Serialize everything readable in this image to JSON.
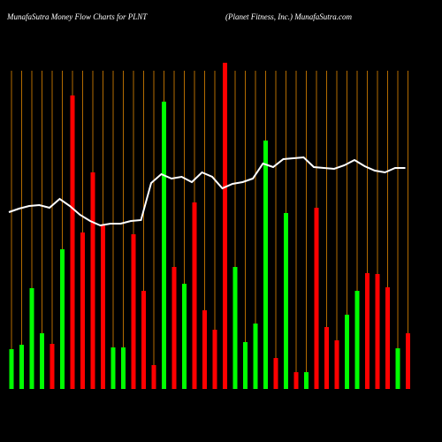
{
  "chart_data": {
    "type": "bar",
    "title": "MunafaSutra  Money Flow  Charts for PLNT",
    "subtitle": "(Planet Fitness,  Inc.) MunafaSutra.com",
    "categories": [
      null,
      null,
      null,
      null,
      null,
      null,
      null,
      null,
      null,
      null,
      null,
      null,
      null,
      null,
      null,
      null,
      null,
      null,
      null,
      null,
      null,
      null,
      null,
      null,
      null,
      null,
      null,
      null,
      null,
      null,
      null,
      null,
      null,
      null,
      null,
      null,
      null,
      null,
      null,
      null
    ],
    "series": [
      {
        "type": "bar",
        "values": [
          45,
          50,
          114,
          63,
          51,
          158,
          332,
          177,
          245,
          185,
          47,
          47,
          175,
          111,
          27,
          325,
          138,
          119,
          211,
          89,
          67,
          369,
          138,
          53,
          74,
          281,
          35,
          199,
          19,
          19,
          205,
          70,
          55,
          84,
          111,
          131,
          130,
          115,
          46,
          63
        ],
        "colors": [
          "#00ff00",
          "#00ff00",
          "#00ff00",
          "#00ff00",
          "#ff0000",
          "#00ff00",
          "#ff0000",
          "#ff0000",
          "#ff0000",
          "#ff0000",
          "#00ff00",
          "#00ff00",
          "#ff0000",
          "#ff0000",
          "#ff0000",
          "#00ff00",
          "#ff0000",
          "#00ff00",
          "#ff0000",
          "#ff0000",
          "#ff0000",
          "#ff0000",
          "#00ff00",
          "#00ff00",
          "#00ff00",
          "#00ff00",
          "#ff0000",
          "#00ff00",
          "#ff0000",
          "#00ff00",
          "#ff0000",
          "#ff0000",
          "#ff0000",
          "#00ff00",
          "#00ff00",
          "#ff0000",
          "#ff0000",
          "#ff0000",
          "#00ff00",
          "#ff0000"
        ]
      },
      {
        "type": "line",
        "color": "#ffffff",
        "values": [
          200,
          204,
          207,
          208,
          205,
          215,
          207,
          197,
          190,
          185,
          187,
          187,
          190,
          191,
          233,
          243,
          238,
          240,
          234,
          245,
          240,
          227,
          232,
          234,
          238,
          255,
          251,
          260,
          261,
          262,
          251,
          250,
          249,
          253,
          259,
          252,
          247,
          245,
          250,
          250
        ]
      }
    ],
    "ylim": [
      0,
      380
    ],
    "grid": true,
    "grid_color": "#b36b00"
  }
}
